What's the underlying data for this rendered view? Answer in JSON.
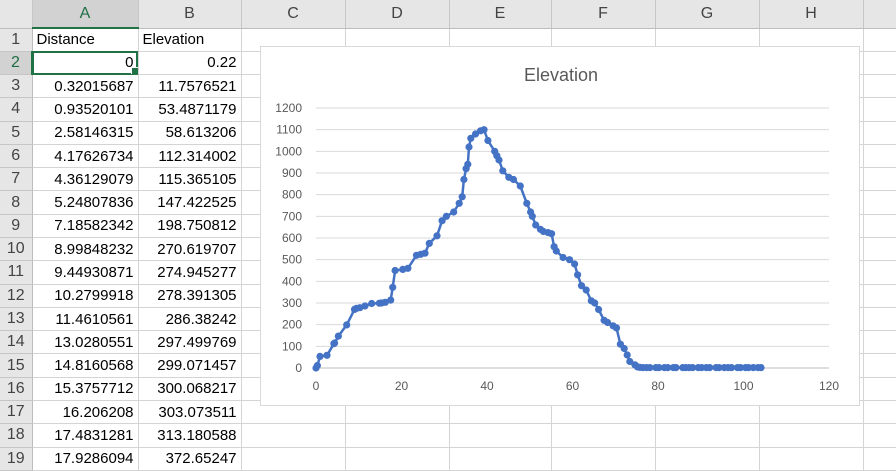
{
  "sheet": {
    "columns": [
      "A",
      "B",
      "C",
      "D",
      "E",
      "F",
      "G",
      "H"
    ],
    "rows": [
      {
        "n": "1",
        "a": "Distance",
        "b": "Elevation",
        "type": "text"
      },
      {
        "n": "2",
        "a": "0",
        "b": "0.22",
        "type": "num"
      },
      {
        "n": "3",
        "a": "0.32015687",
        "b": "11.7576521",
        "type": "num"
      },
      {
        "n": "4",
        "a": "0.93520101",
        "b": "53.4871179",
        "type": "num"
      },
      {
        "n": "5",
        "a": "2.58146315",
        "b": "58.613206",
        "type": "num"
      },
      {
        "n": "6",
        "a": "4.17626734",
        "b": "112.314002",
        "type": "num"
      },
      {
        "n": "7",
        "a": "4.36129079",
        "b": "115.365105",
        "type": "num"
      },
      {
        "n": "8",
        "a": "5.24807836",
        "b": "147.422525",
        "type": "num"
      },
      {
        "n": "9",
        "a": "7.18582342",
        "b": "198.750812",
        "type": "num"
      },
      {
        "n": "10",
        "a": "8.99848232",
        "b": "270.619707",
        "type": "num"
      },
      {
        "n": "11",
        "a": "9.44930871",
        "b": "274.945277",
        "type": "num"
      },
      {
        "n": "12",
        "a": "10.2799918",
        "b": "278.391305",
        "type": "num"
      },
      {
        "n": "13",
        "a": "11.4610561",
        "b": "286.38242",
        "type": "num"
      },
      {
        "n": "14",
        "a": "13.0280551",
        "b": "297.499769",
        "type": "num"
      },
      {
        "n": "15",
        "a": "14.8160568",
        "b": "299.071457",
        "type": "num"
      },
      {
        "n": "16",
        "a": "15.3757712",
        "b": "300.068217",
        "type": "num"
      },
      {
        "n": "17",
        "a": "16.206208",
        "b": "303.073511",
        "type": "num"
      },
      {
        "n": "18",
        "a": "17.4831281",
        "b": "313.180588",
        "type": "num"
      },
      {
        "n": "19",
        "a": "17.9286094",
        "b": "372.65247",
        "type": "num"
      }
    ],
    "active_cell": "A2"
  },
  "chart_data": {
    "type": "scatter",
    "title": "Elevation",
    "xlabel": "",
    "ylabel": "",
    "xlim": [
      0,
      120
    ],
    "ylim": [
      0,
      1200
    ],
    "x_ticks": [
      "0",
      "20",
      "40",
      "60",
      "80",
      "100",
      "120"
    ],
    "y_ticks": [
      "0",
      "100",
      "200",
      "300",
      "400",
      "500",
      "600",
      "700",
      "800",
      "900",
      "1000",
      "1100",
      "1200"
    ],
    "grid": "horizontal",
    "legend": "none",
    "series_color": "#4472c4",
    "x": [
      0,
      0.32,
      0.94,
      2.58,
      4.18,
      4.36,
      5.25,
      7.19,
      9.0,
      9.45,
      10.28,
      11.46,
      13.03,
      14.82,
      15.38,
      16.21,
      17.48,
      17.93,
      18.5,
      20.3,
      21.5,
      23.5,
      24.5,
      25.5,
      26.5,
      28.3,
      29.5,
      30.5,
      32.2,
      33.5,
      34.2,
      34.6,
      35.1,
      35.5,
      35.8,
      36.2,
      37.3,
      38.5,
      39.3,
      40.2,
      41.8,
      42.3,
      42.8,
      43.7,
      45.1,
      46.2,
      47.8,
      49.3,
      50.2,
      50.6,
      51.4,
      52.5,
      53.2,
      54.3,
      55.1,
      55.7,
      56.2,
      57.8,
      59.3,
      60.5,
      61.2,
      62.1,
      63.2,
      64.4,
      65.2,
      66.1,
      67.4,
      68.2,
      69.5,
      70.3,
      71.2,
      72.1,
      72.8,
      73.4,
      74.6,
      75.2,
      75.8,
      76.5,
      77.3,
      78.1,
      79.5,
      80.2,
      81.5,
      82.3,
      83.6,
      84.2,
      85.8,
      86.5,
      87.3,
      88.1,
      89.4,
      90.2,
      91.3,
      92.1,
      93.6,
      94.3,
      95.5,
      96.4,
      97.2,
      98.6,
      99.3,
      100.5,
      101.2,
      102.3,
      103.4,
      104.1
    ],
    "y": [
      0.22,
      11.76,
      53.49,
      58.61,
      112.31,
      115.37,
      147.42,
      198.75,
      270.62,
      274.95,
      278.39,
      286.38,
      297.5,
      299.07,
      300.07,
      303.07,
      313.18,
      372.65,
      450,
      455,
      460,
      520,
      525,
      530,
      575,
      610,
      680,
      700,
      720,
      760,
      790,
      870,
      920,
      940,
      1020,
      1060,
      1080,
      1095,
      1100,
      1050,
      1000,
      980,
      960,
      910,
      880,
      870,
      840,
      760,
      720,
      700,
      660,
      640,
      630,
      625,
      620,
      560,
      540,
      510,
      500,
      480,
      430,
      380,
      360,
      310,
      300,
      270,
      220,
      210,
      195,
      185,
      110,
      90,
      60,
      30,
      15,
      5,
      3,
      2,
      2,
      2,
      2,
      2,
      2,
      2,
      2,
      2,
      2,
      2,
      2,
      2,
      2,
      2,
      2,
      2,
      2,
      2,
      2,
      2,
      2,
      2,
      2,
      2,
      2,
      2,
      2,
      2
    ]
  }
}
